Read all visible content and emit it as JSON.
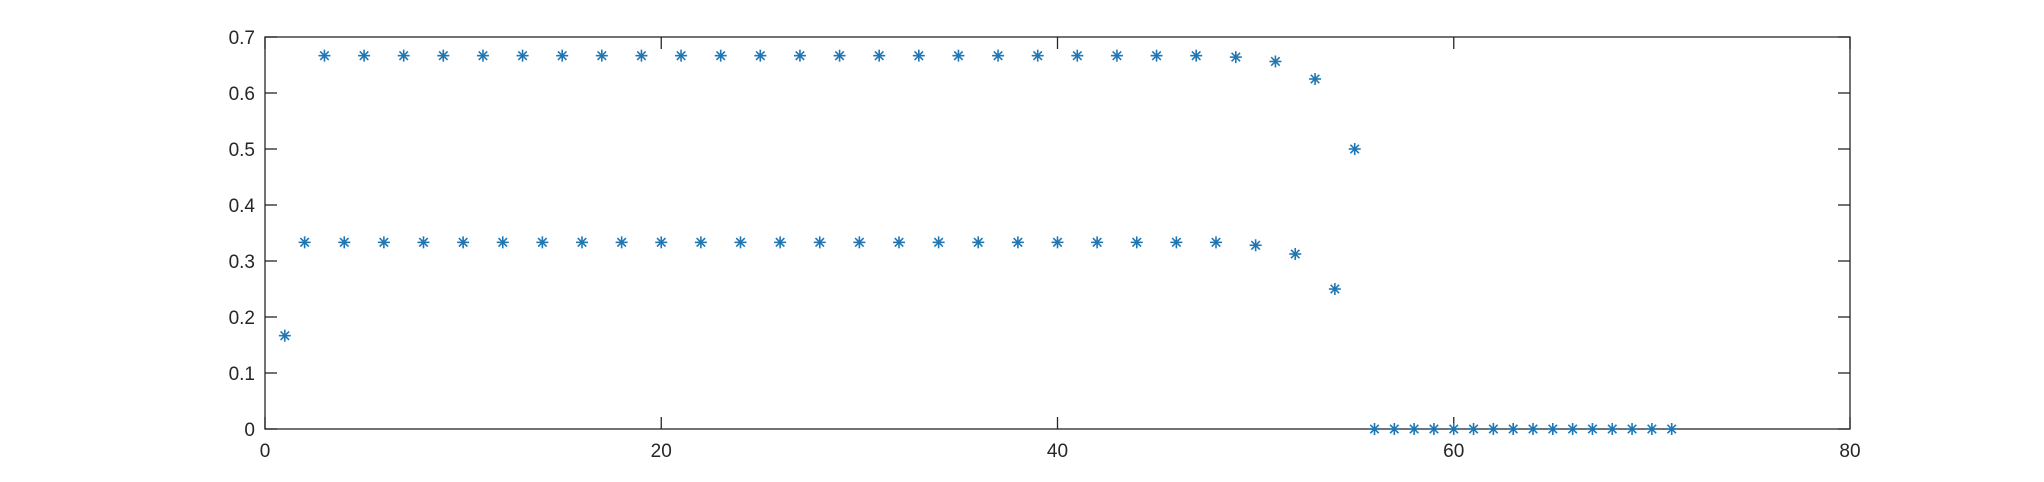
{
  "chart_data": {
    "type": "scatter",
    "marker": "asterisk",
    "marker_color": "#1f77b4",
    "xlim": [
      0,
      80
    ],
    "ylim": [
      0,
      0.7
    ],
    "xticks": [
      0,
      20,
      40,
      60,
      80
    ],
    "xtick_labels": [
      "0",
      "20",
      "40",
      "60",
      "80"
    ],
    "yticks": [
      0,
      0.1,
      0.2,
      0.3,
      0.4,
      0.5,
      0.6,
      0.7
    ],
    "ytick_labels": [
      "0",
      "0.1",
      "0.2",
      "0.3",
      "0.4",
      "0.5",
      "0.6",
      "0.7"
    ],
    "grid": false,
    "legend": "none",
    "series": [
      {
        "x": [
          1,
          2,
          3,
          4,
          5,
          6,
          7,
          8,
          9,
          10,
          11,
          12,
          13,
          14,
          15,
          16,
          17,
          18,
          19,
          20,
          21,
          22,
          23,
          24,
          25,
          26,
          27,
          28,
          29,
          30,
          31,
          32,
          33,
          34,
          35,
          36,
          37,
          38,
          39,
          40,
          41,
          42,
          43,
          44,
          45,
          46,
          47,
          48,
          49,
          50,
          51,
          52,
          53,
          54,
          55,
          56,
          57,
          58,
          59,
          60,
          61,
          62,
          63,
          64,
          65,
          66,
          67,
          68,
          69,
          70,
          71
        ],
        "y": [
          0.1667,
          0.3333,
          0.6667,
          0.3333,
          0.6667,
          0.3333,
          0.6667,
          0.3333,
          0.6667,
          0.3333,
          0.6667,
          0.3333,
          0.6667,
          0.3333,
          0.6667,
          0.3333,
          0.6667,
          0.3333,
          0.6667,
          0.3333,
          0.6667,
          0.3333,
          0.6667,
          0.3333,
          0.6667,
          0.3333,
          0.6667,
          0.3333,
          0.6667,
          0.3333,
          0.6667,
          0.3333,
          0.6667,
          0.3333,
          0.6667,
          0.3333,
          0.6667,
          0.3333,
          0.6667,
          0.3333,
          0.6667,
          0.3333,
          0.6667,
          0.3333,
          0.6667,
          0.3333,
          0.6667,
          0.3333,
          0.6641,
          0.3281,
          0.6563,
          0.3125,
          0.625,
          0.25,
          0.5,
          0,
          0,
          0,
          0,
          0,
          0,
          0,
          0,
          0,
          0,
          0,
          0,
          0,
          0,
          0,
          0
        ]
      }
    ]
  }
}
